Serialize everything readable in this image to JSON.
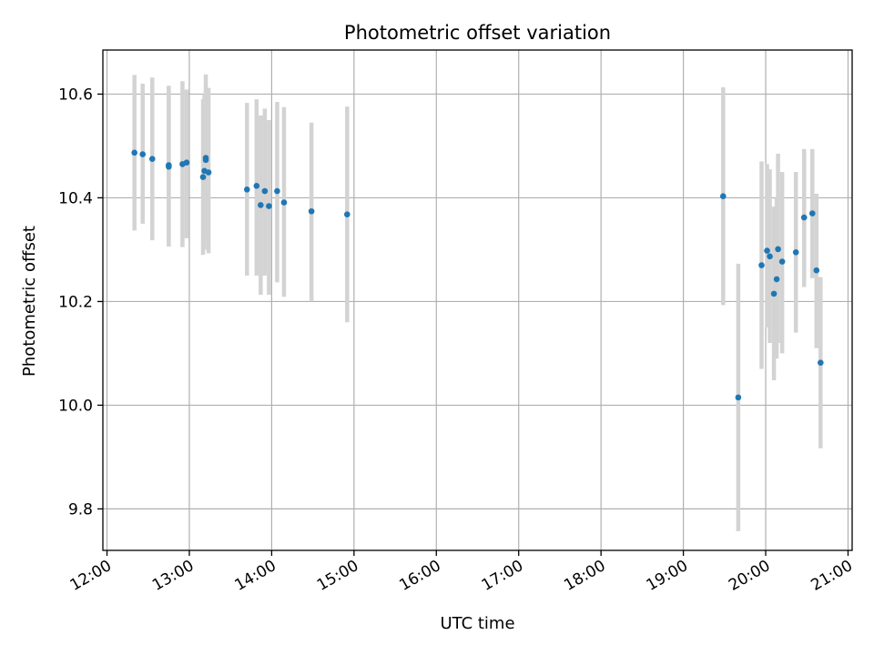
{
  "chart_data": {
    "type": "scatter",
    "title": "Photometric offset variation",
    "xlabel": "UTC time",
    "ylabel": "Photometric offset",
    "x_tick_labels": [
      "12:00",
      "13:00",
      "14:00",
      "15:00",
      "16:00",
      "17:00",
      "18:00",
      "19:00",
      "20:00",
      "21:00"
    ],
    "y_tick_labels": [
      "9.8",
      "10.0",
      "10.2",
      "10.4",
      "10.6"
    ],
    "y_ticks": [
      9.8,
      10.0,
      10.2,
      10.4,
      10.6
    ],
    "xlim": [
      "11:57",
      "21:03"
    ],
    "ylim": [
      9.72,
      10.685
    ],
    "grid": true,
    "colors": {
      "points": "#1f77b4",
      "error_bars": "#d3d3d3"
    },
    "points": [
      {
        "x": "12:20",
        "y": 10.487,
        "ylow": 10.337,
        "yhigh": 10.637
      },
      {
        "x": "12:26",
        "y": 10.484,
        "ylow": 10.35,
        "yhigh": 10.62
      },
      {
        "x": "12:33",
        "y": 10.475,
        "ylow": 10.318,
        "yhigh": 10.632
      },
      {
        "x": "12:45",
        "y": 10.463,
        "ylow": 10.306,
        "yhigh": 10.616
      },
      {
        "x": "12:45",
        "y": 10.46,
        "ylow": 10.306,
        "yhigh": 10.616
      },
      {
        "x": "12:55",
        "y": 10.465,
        "ylow": 10.305,
        "yhigh": 10.625
      },
      {
        "x": "12:58",
        "y": 10.468,
        "ylow": 10.322,
        "yhigh": 10.609
      },
      {
        "x": "13:10",
        "y": 10.44,
        "ylow": 10.29,
        "yhigh": 10.59
      },
      {
        "x": "13:11",
        "y": 10.452,
        "ylow": 10.3,
        "yhigh": 10.6
      },
      {
        "x": "13:12",
        "y": 10.473,
        "ylow": 10.32,
        "yhigh": 10.638
      },
      {
        "x": "13:12",
        "y": 10.477,
        "ylow": 10.33,
        "yhigh": 10.616
      },
      {
        "x": "13:14",
        "y": 10.449,
        "ylow": 10.293,
        "yhigh": 10.612
      },
      {
        "x": "13:42",
        "y": 10.416,
        "ylow": 10.25,
        "yhigh": 10.583
      },
      {
        "x": "13:49",
        "y": 10.423,
        "ylow": 10.25,
        "yhigh": 10.59
      },
      {
        "x": "13:52",
        "y": 10.386,
        "ylow": 10.213,
        "yhigh": 10.559
      },
      {
        "x": "13:55",
        "y": 10.413,
        "ylow": 10.25,
        "yhigh": 10.572
      },
      {
        "x": "13:58",
        "y": 10.384,
        "ylow": 10.213,
        "yhigh": 10.55
      },
      {
        "x": "14:04",
        "y": 10.413,
        "ylow": 10.237,
        "yhigh": 10.585
      },
      {
        "x": "14:09",
        "y": 10.391,
        "ylow": 10.209,
        "yhigh": 10.575
      },
      {
        "x": "14:29",
        "y": 10.374,
        "ylow": 10.2,
        "yhigh": 10.545
      },
      {
        "x": "14:55",
        "y": 10.368,
        "ylow": 10.16,
        "yhigh": 10.576
      },
      {
        "x": "19:29",
        "y": 10.403,
        "ylow": 10.193,
        "yhigh": 10.613
      },
      {
        "x": "19:40",
        "y": 10.015,
        "ylow": 9.757,
        "yhigh": 10.273
      },
      {
        "x": "19:57",
        "y": 10.27,
        "ylow": 10.07,
        "yhigh": 10.47
      },
      {
        "x": "20:01",
        "y": 10.298,
        "ylow": 10.15,
        "yhigh": 10.465
      },
      {
        "x": "20:03",
        "y": 10.287,
        "ylow": 10.12,
        "yhigh": 10.455
      },
      {
        "x": "20:06",
        "y": 10.215,
        "ylow": 10.048,
        "yhigh": 10.383
      },
      {
        "x": "20:08",
        "y": 10.243,
        "ylow": 10.09,
        "yhigh": 10.4
      },
      {
        "x": "20:09",
        "y": 10.301,
        "ylow": 10.12,
        "yhigh": 10.485
      },
      {
        "x": "20:12",
        "y": 10.277,
        "ylow": 10.1,
        "yhigh": 10.45
      },
      {
        "x": "20:22",
        "y": 10.295,
        "ylow": 10.14,
        "yhigh": 10.45
      },
      {
        "x": "20:28",
        "y": 10.362,
        "ylow": 10.228,
        "yhigh": 10.494
      },
      {
        "x": "20:34",
        "y": 10.37,
        "ylow": 10.245,
        "yhigh": 10.494
      },
      {
        "x": "20:37",
        "y": 10.26,
        "ylow": 10.11,
        "yhigh": 10.408
      },
      {
        "x": "20:40",
        "y": 10.082,
        "ylow": 9.917,
        "yhigh": 10.247
      }
    ]
  }
}
